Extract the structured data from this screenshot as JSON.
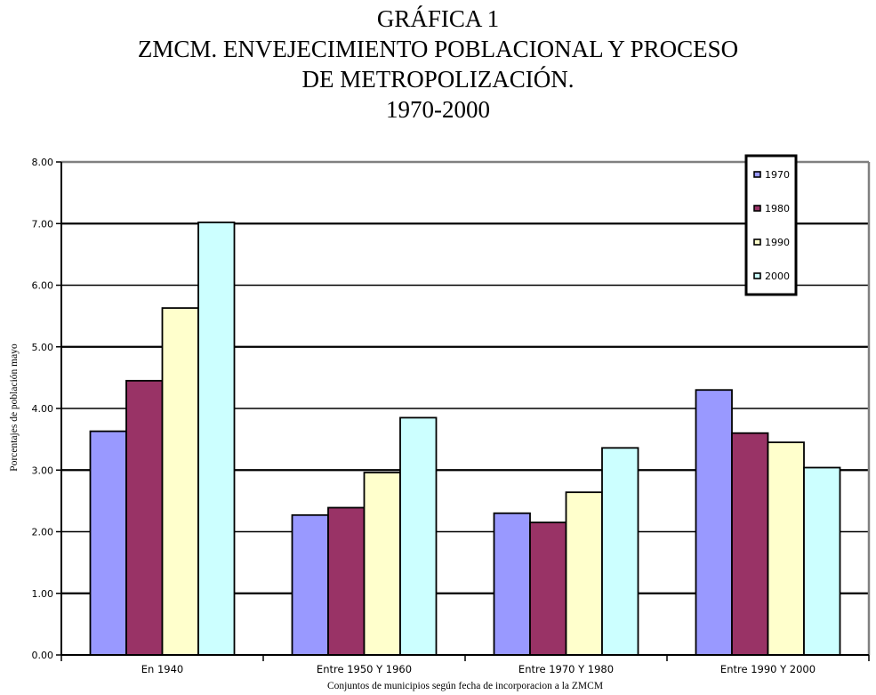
{
  "chart_data": {
    "type": "bar",
    "title_lines": [
      "GRÁFICA 1",
      "ZMCM. ENVEJECIMIENTO POBLACIONAL Y PROCESO",
      "DE METROPOLIZACIÓN.",
      "1970-2000"
    ],
    "xlabel": "Conjuntos de municipios según fecha de incorporacion a la ZMCM",
    "ylabel": "Porcentajes de población mayo",
    "categories": [
      "En 1940",
      "Entre 1950 Y 1960",
      "Entre 1970 Y 1980",
      "Entre 1990 Y 2000"
    ],
    "series": [
      {
        "name": "1970",
        "color": "#9999ff",
        "values": [
          3.63,
          2.27,
          2.3,
          4.3
        ]
      },
      {
        "name": "1980",
        "color": "#993366",
        "values": [
          4.45,
          2.39,
          2.15,
          3.6
        ]
      },
      {
        "name": "1990",
        "color": "#ffffcc",
        "values": [
          5.63,
          2.96,
          2.64,
          3.45
        ]
      },
      {
        "name": "2000",
        "color": "#ccffff",
        "values": [
          7.02,
          3.85,
          3.36,
          3.04
        ]
      }
    ],
    "ylim": [
      0,
      8
    ],
    "yticks": [
      "0.00",
      "1.00",
      "2.00",
      "3.00",
      "4.00",
      "5.00",
      "6.00",
      "7.00",
      "8.00"
    ],
    "grid": true,
    "legend_position": "top-right"
  }
}
